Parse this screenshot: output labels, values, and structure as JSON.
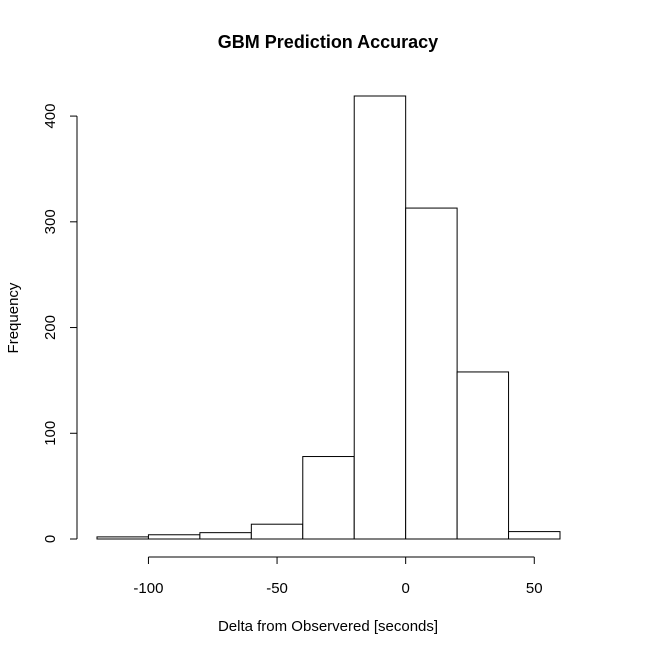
{
  "chart_data": {
    "type": "bar",
    "title": "GBM Prediction Accuracy",
    "xlabel": "Delta from Observered [seconds]",
    "ylabel": "Frequency",
    "bins": [
      {
        "x0": -120,
        "x1": -100,
        "count": 2
      },
      {
        "x0": -100,
        "x1": -80,
        "count": 4
      },
      {
        "x0": -80,
        "x1": -60,
        "count": 6
      },
      {
        "x0": -60,
        "x1": -40,
        "count": 14
      },
      {
        "x0": -40,
        "x1": -20,
        "count": 78
      },
      {
        "x0": -20,
        "x1": 0,
        "count": 419
      },
      {
        "x0": 0,
        "x1": 20,
        "count": 313
      },
      {
        "x0": 20,
        "x1": 40,
        "count": 158
      },
      {
        "x0": 40,
        "x1": 60,
        "count": 7
      }
    ],
    "xticks": [
      -100,
      -50,
      0,
      50
    ],
    "yticks": [
      0,
      100,
      200,
      300,
      400
    ],
    "xlim": [
      -120,
      60
    ],
    "ylim": [
      0,
      419
    ],
    "grid": false,
    "legend": "none"
  }
}
